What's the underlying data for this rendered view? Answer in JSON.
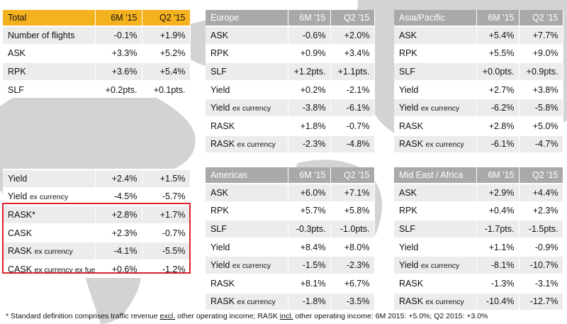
{
  "total": {
    "header": [
      "Total",
      "6M '15",
      "Q2 '15"
    ],
    "rows": [
      {
        "label": "Number of flights",
        "sub": "",
        "h1": "-0.1%",
        "q2": "+1.9%"
      },
      {
        "label": "ASK",
        "sub": "",
        "h1": "+3.3%",
        "q2": "+5.2%"
      },
      {
        "label": "RPK",
        "sub": "",
        "h1": "+3.6%",
        "q2": "+5.4%"
      },
      {
        "label": "SLF",
        "sub": "",
        "h1": "+0.2pts.",
        "q2": "+0.1pts."
      }
    ]
  },
  "unit": {
    "rows": [
      {
        "label": "Yield",
        "sub": "",
        "h1": "+2.4%",
        "q2": "+1.5%"
      },
      {
        "label": "Yield",
        "sub": "ex currency",
        "h1": "-4.5%",
        "q2": "-5.7%"
      },
      {
        "label": "RASK*",
        "sub": "",
        "h1": "+2.8%",
        "q2": "+1.7%"
      },
      {
        "label": "CASK",
        "sub": "",
        "h1": "+2.3%",
        "q2": "-0.7%"
      },
      {
        "label": "RASK",
        "sub": "ex currency",
        "h1": "-4.1%",
        "q2": "-5.5%"
      },
      {
        "label": "CASK",
        "sub": "ex currency ex fuel",
        "h1": "+0.6%",
        "q2": "-1.2%"
      }
    ]
  },
  "europe": {
    "header": [
      "Europe",
      "6M '15",
      "Q2 '15"
    ],
    "rows": [
      {
        "label": "ASK",
        "sub": "",
        "h1": "-0.6%",
        "q2": "+2.0%"
      },
      {
        "label": "RPK",
        "sub": "",
        "h1": "+0.9%",
        "q2": "+3.4%"
      },
      {
        "label": "SLF",
        "sub": "",
        "h1": "+1.2pts.",
        "q2": "+1.1pts."
      },
      {
        "label": "Yield",
        "sub": "",
        "h1": "+0.2%",
        "q2": "-2.1%"
      },
      {
        "label": "Yield",
        "sub": "ex currency",
        "h1": "-3.8%",
        "q2": "-6.1%"
      },
      {
        "label": "RASK",
        "sub": "",
        "h1": "+1.8%",
        "q2": "-0.7%"
      },
      {
        "label": "RASK",
        "sub": "ex currency",
        "h1": "-2.3%",
        "q2": "-4.8%"
      }
    ]
  },
  "asia": {
    "header": [
      "Asia/Pacific",
      "6M '15",
      "Q2 '15"
    ],
    "rows": [
      {
        "label": "ASK",
        "sub": "",
        "h1": "+5.4%",
        "q2": "+7.7%"
      },
      {
        "label": "RPK",
        "sub": "",
        "h1": "+5.5%",
        "q2": "+9.0%"
      },
      {
        "label": "SLF",
        "sub": "",
        "h1": "+0.0pts.",
        "q2": "+0.9pts."
      },
      {
        "label": "Yield",
        "sub": "",
        "h1": "+2.7%",
        "q2": "+3.8%"
      },
      {
        "label": "Yield",
        "sub": "ex currency",
        "h1": "-6.2%",
        "q2": "-5.8%"
      },
      {
        "label": "RASK",
        "sub": "",
        "h1": "+2.8%",
        "q2": "+5.0%"
      },
      {
        "label": "RASK",
        "sub": "ex currency",
        "h1": "-6.1%",
        "q2": "-4.7%"
      }
    ]
  },
  "americas": {
    "header": [
      "Americas",
      "6M '15",
      "Q2 '15"
    ],
    "rows": [
      {
        "label": "ASK",
        "sub": "",
        "h1": "+6.0%",
        "q2": "+7.1%"
      },
      {
        "label": "RPK",
        "sub": "",
        "h1": "+5.7%",
        "q2": "+5.8%"
      },
      {
        "label": "SLF",
        "sub": "",
        "h1": "-0.3pts.",
        "q2": "-1.0pts."
      },
      {
        "label": "Yield",
        "sub": "",
        "h1": "+8.4%",
        "q2": "+8.0%"
      },
      {
        "label": "Yield",
        "sub": "ex currency",
        "h1": "-1.5%",
        "q2": "-2.3%"
      },
      {
        "label": "RASK",
        "sub": "",
        "h1": "+8.1%",
        "q2": "+6.7%"
      },
      {
        "label": "RASK",
        "sub": "ex currency",
        "h1": "-1.8%",
        "q2": "-3.5%"
      }
    ]
  },
  "mea": {
    "header": [
      "Mid East / Africa",
      "6M '15",
      "Q2 '15"
    ],
    "rows": [
      {
        "label": "ASK",
        "sub": "",
        "h1": "+2.9%",
        "q2": "+4.4%"
      },
      {
        "label": "RPK",
        "sub": "",
        "h1": "+0.4%",
        "q2": "+2.3%"
      },
      {
        "label": "SLF",
        "sub": "",
        "h1": "-1.7pts.",
        "q2": "-1.5pts."
      },
      {
        "label": "Yield",
        "sub": "",
        "h1": "+1.1%",
        "q2": "-0.9%"
      },
      {
        "label": "Yield",
        "sub": "ex currency",
        "h1": "-8.1%",
        "q2": "-10.7%"
      },
      {
        "label": "RASK",
        "sub": "",
        "h1": "-1.3%",
        "q2": "-3.1%"
      },
      {
        "label": "RASK",
        "sub": "ex currency",
        "h1": "-10.4%",
        "q2": "-12.7%"
      }
    ]
  },
  "footnote": {
    "a": "* Standard definition comprises traffic revenue ",
    "b": "excl.",
    "c": " other operating income; RASK ",
    "d": "incl.",
    "e": " other operating income: 6M 2015: +5.0%; Q2 2015: +3.0%"
  },
  "colors": {
    "total_header": "#f5b21f",
    "region_header": "#a9a9a9",
    "highlight": "#d9232a"
  }
}
